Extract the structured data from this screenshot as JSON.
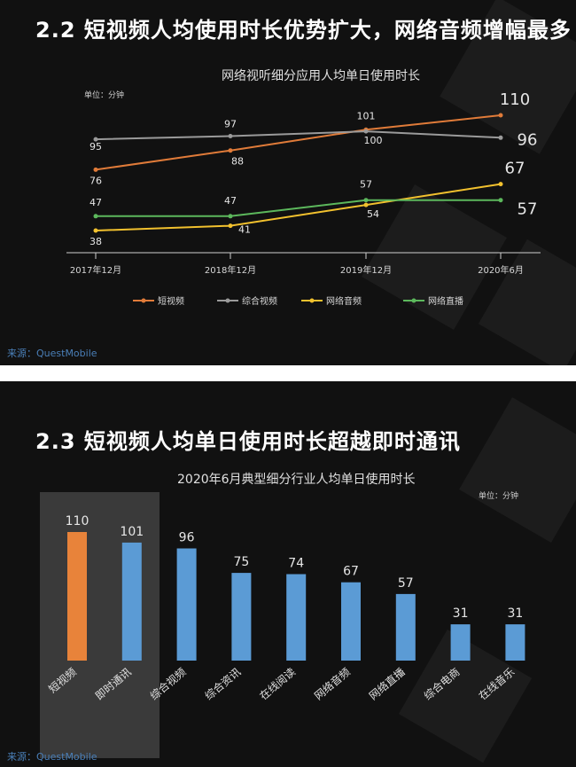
{
  "top": {
    "heading": "2.2 短视频人均使用时长优势扩大，网络音频增幅最多",
    "unit": "单位：分钟",
    "source": "来源：QuestMobile",
    "chart_data": {
      "type": "line",
      "title": "网络视听细分应用人均单日使用时长",
      "x": [
        "2017年12月",
        "2018年12月",
        "2019年12月",
        "2020年6月"
      ],
      "series": [
        {
          "name": "短视频",
          "color": "#e07b39",
          "values": [
            76,
            88,
            101,
            110
          ]
        },
        {
          "name": "综合视频",
          "color": "#9a9a9a",
          "values": [
            95,
            97,
            100,
            96
          ]
        },
        {
          "name": "网络音频",
          "color": "#f2c12e",
          "values": [
            38,
            41,
            54,
            67
          ]
        },
        {
          "name": "网络直播",
          "color": "#5cb85c",
          "values": [
            47,
            47,
            57,
            57
          ]
        }
      ]
    }
  },
  "bottom": {
    "heading": "2.3 短视频人均单日使用时长超越即时通讯",
    "unit": "单位：分钟",
    "source": "来源：QuestMobile",
    "chart_data": {
      "type": "bar",
      "title": "2020年6月典型细分行业人均单日使用时长",
      "categories": [
        "短视频",
        "即时通讯",
        "综合视频",
        "综合资讯",
        "在线阅读",
        "网络音频",
        "网络直播",
        "综合电商",
        "在线音乐"
      ],
      "values": [
        110,
        101,
        96,
        75,
        74,
        67,
        57,
        31,
        31
      ],
      "colors": [
        "#e8833a",
        "#5b9bd5",
        "#5b9bd5",
        "#5b9bd5",
        "#5b9bd5",
        "#5b9bd5",
        "#5b9bd5",
        "#5b9bd5",
        "#5b9bd5"
      ],
      "highlight_color": "#3a3a3a"
    }
  }
}
